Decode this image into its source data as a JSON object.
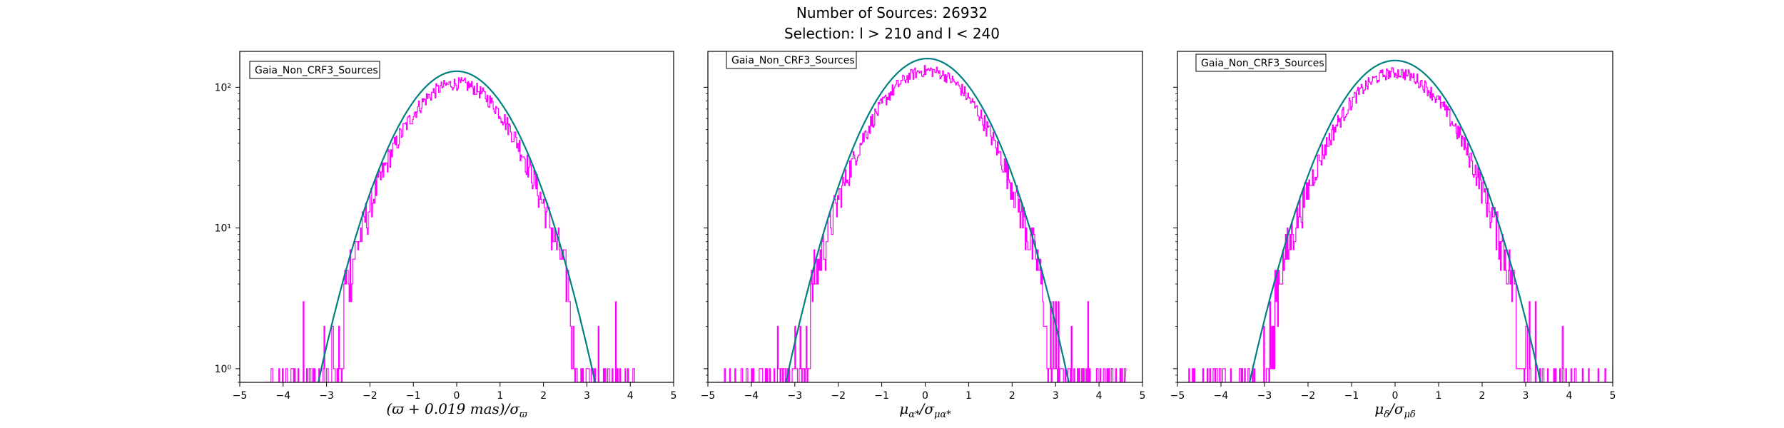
{
  "figure": {
    "title_line1": "Number of Sources: 26932",
    "title_line2": "Selection: l > 210 and l < 240"
  },
  "colors": {
    "histogram": "#ff00ff",
    "gaussian": "#008080"
  },
  "chart_data": [
    {
      "type": "line",
      "legend": "Gaia_Non_CRF3_Sources",
      "legend_position": "top-left",
      "xlabel": "(ϖ + 0.019 mas)/σ_ϖ",
      "ylabel": "",
      "yscale": "log",
      "xlim": [
        -5,
        5
      ],
      "ylim": [
        0.8,
        180
      ],
      "xticks": [
        "−5",
        "−4",
        "−3",
        "−2",
        "−1",
        "0",
        "1",
        "2",
        "3",
        "4",
        "5"
      ],
      "yticks": [
        "10⁰",
        "10¹",
        "10²"
      ],
      "gaussian": {
        "amplitude": 130,
        "center": 0.0,
        "sigma": 1.0,
        "label": ""
      },
      "histogram_extent": [
        -4.4,
        4.1
      ],
      "series": [
        {
          "label": "histogram",
          "x": [
            -4.4,
            -3.2,
            -2.6,
            -2.0,
            -1.5,
            -1.0,
            -0.5,
            0.0,
            0.5,
            1.0,
            1.5,
            2.0,
            2.6,
            3.2,
            4.1
          ],
          "y": [
            1,
            2,
            6,
            20,
            45,
            70,
            95,
            105,
            95,
            70,
            45,
            20,
            6,
            2,
            1
          ]
        }
      ]
    },
    {
      "type": "line",
      "legend": "Gaia_Non_CRF3_Sources",
      "legend_position": "top-left",
      "xlabel": "μ_α*/σ_μα*",
      "ylabel": "",
      "yscale": "log",
      "xlim": [
        -5,
        5
      ],
      "ylim": [
        0.8,
        180
      ],
      "xticks": [
        "−5",
        "−4",
        "−3",
        "−2",
        "−1",
        "0",
        "1",
        "2",
        "3",
        "4",
        "5"
      ],
      "yticks": [
        "10⁰",
        "10¹",
        "10²"
      ],
      "gaussian": {
        "amplitude": 160,
        "center": 0.05,
        "sigma": 1.0,
        "label": ""
      },
      "histogram_extent": [
        -4.8,
        4.6
      ],
      "series": [
        {
          "label": "histogram",
          "x": [
            -4.8,
            -3.4,
            -2.6,
            -2.0,
            -1.5,
            -1.0,
            -0.5,
            0.0,
            0.5,
            1.0,
            1.5,
            2.0,
            2.6,
            3.4,
            4.6
          ],
          "y": [
            1,
            2,
            6,
            22,
            50,
            80,
            110,
            125,
            110,
            80,
            50,
            22,
            6,
            2,
            1
          ]
        }
      ]
    },
    {
      "type": "line",
      "legend": "Gaia_Non_CRF3_Sources",
      "legend_position": "top-left",
      "xlabel": "μ_δ/σ_μδ",
      "ylabel": "",
      "yscale": "log",
      "xlim": [
        -5,
        5
      ],
      "ylim": [
        0.8,
        180
      ],
      "xticks": [
        "−5",
        "−4",
        "−3",
        "−2",
        "−1",
        "0",
        "1",
        "2",
        "3",
        "4",
        "5"
      ],
      "yticks": [
        "10⁰",
        "10¹",
        "10²"
      ],
      "gaussian": {
        "amplitude": 155,
        "center": 0.0,
        "sigma": 1.03,
        "label": ""
      },
      "histogram_extent": [
        -4.8,
        5.0
      ],
      "series": [
        {
          "label": "histogram",
          "x": [
            -4.8,
            -3.4,
            -2.6,
            -2.0,
            -1.5,
            -1.0,
            -0.5,
            0.0,
            0.5,
            1.0,
            1.5,
            2.0,
            2.6,
            3.4,
            5.0
          ],
          "y": [
            1,
            2,
            6,
            22,
            50,
            80,
            110,
            120,
            110,
            80,
            50,
            22,
            6,
            2,
            1
          ]
        }
      ]
    }
  ]
}
